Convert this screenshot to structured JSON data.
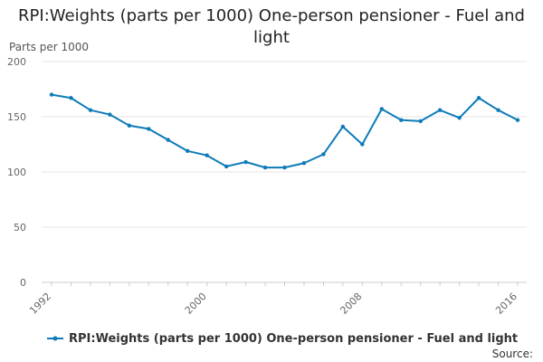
{
  "chart_data": {
    "type": "line",
    "title": "RPI:Weights (parts per 1000) One-person pensioner - Fuel and light",
    "ylabel": "Parts per 1000",
    "xlabel": "",
    "ylim": [
      0,
      200
    ],
    "y_ticks": [
      "0",
      "50",
      "100",
      "150",
      "200"
    ],
    "x_tick_labels": [
      "1992",
      "2000",
      "2008",
      "2016"
    ],
    "x": [
      1992,
      1993,
      1994,
      1995,
      1996,
      1997,
      1998,
      1999,
      2000,
      2001,
      2002,
      2003,
      2004,
      2005,
      2006,
      2007,
      2008,
      2009,
      2010,
      2011,
      2012,
      2013,
      2014,
      2015,
      2016
    ],
    "series": [
      {
        "name": "RPI:Weights (parts per 1000) One-person pensioner - Fuel and light",
        "color": "#0e7bb8",
        "values": [
          170,
          167,
          156,
          152,
          142,
          139,
          129,
          119,
          115,
          105,
          109,
          104,
          104,
          108,
          116,
          141,
          125,
          157,
          147,
          146,
          156,
          149,
          167,
          156,
          147
        ]
      }
    ],
    "grid": "horizontal",
    "legend_position": "bottom",
    "source_label": "Source:"
  }
}
